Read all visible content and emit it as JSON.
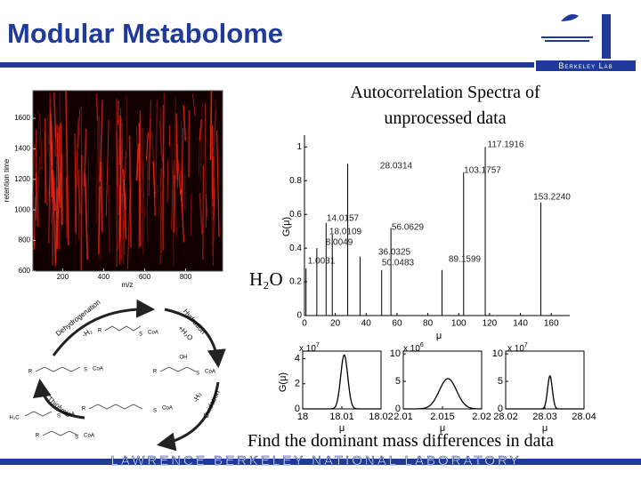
{
  "header": {
    "title": "Modular Metabolome",
    "logo_text": "Berkeley Lab"
  },
  "footer": {
    "text": "Lawrence Berkeley National Laboratory"
  },
  "caption": "Find the dominant mass differences in data",
  "annotation": "H₂O",
  "diagram": {
    "steps": [
      {
        "label": "Dehydrogenation",
        "note": "-H₂"
      },
      {
        "label": "Hydration",
        "note": "+H₂O"
      },
      {
        "label": "Oxidation",
        "note": "-H₂"
      },
      {
        "label": "Thiolysis"
      }
    ],
    "coa": "CoA",
    "r": "R",
    "s": "S",
    "oh": "OH",
    "h3c": "H₃C"
  },
  "chart_data": [
    {
      "type": "heatmap",
      "xlabel": "m/z",
      "ylabel": "retention time",
      "xlim": [
        55,
        980
      ],
      "ylim": [
        600,
        1780
      ],
      "xticks": [
        200,
        400,
        600,
        800
      ],
      "yticks": [
        600,
        800,
        1000,
        1200,
        1400,
        1600
      ],
      "color": "#ff2a1a"
    },
    {
      "type": "stem",
      "title": "Autocorrelation Spectra of unprocessed data",
      "xlabel": "μ",
      "ylabel": "G(μ)",
      "xlim": [
        0,
        172
      ],
      "ylim": [
        0,
        1.07
      ],
      "xticks": [
        0,
        20,
        40,
        60,
        80,
        100,
        120,
        140,
        160
      ],
      "yticks": [
        0,
        0.2,
        0.4,
        0.6,
        0.8,
        1
      ],
      "color": "#000000",
      "x": [
        117.1916,
        28.0314,
        103.1757,
        153.224,
        14.0157,
        56.0629,
        18.0109,
        8.0049,
        36.0325,
        1.0031,
        50.0483,
        89.1599
      ],
      "x_labels": [
        "117.1916",
        "28.0314",
        "103.1757",
        "153.2240",
        "14.0157",
        "56.0629",
        "18.0109",
        "8.0049",
        "36.0325",
        "1.0031",
        "50.0483",
        "89.1599"
      ],
      "values": [
        1.0,
        0.9,
        0.85,
        0.67,
        0.55,
        0.52,
        0.48,
        0.4,
        0.35,
        0.28,
        0.27,
        0.27
      ]
    },
    {
      "type": "peaks",
      "xlabel": "μ",
      "ylabel": "G(μ)",
      "color": "#000000",
      "panels": [
        {
          "xlim": [
            18,
            18.02
          ],
          "xticks": [
            18,
            18.01,
            18.02
          ],
          "ylim": [
            0,
            4.6
          ],
          "yticks": [
            0,
            2,
            4
          ],
          "scale": {
            "base": "x 10",
            "exponent": "7"
          },
          "peak": {
            "center": 18.0106,
            "height": 4.3,
            "width": 0.0009
          }
        },
        {
          "xlim": [
            2.01,
            2.02
          ],
          "xticks": [
            2.01,
            2.015,
            2.02
          ],
          "ylim": [
            0,
            10.5
          ],
          "yticks": [
            0,
            5,
            10
          ],
          "scale": {
            "base": "x 10",
            "exponent": "6"
          },
          "peak": {
            "center": 2.0157,
            "height": 5.5,
            "width": 0.0011
          }
        },
        {
          "xlim": [
            28.02,
            28.04
          ],
          "xticks": [
            28.02,
            28.03,
            28.04
          ],
          "ylim": [
            0,
            10.5
          ],
          "yticks": [
            0,
            5,
            10
          ],
          "scale": {
            "base": "x 10",
            "exponent": "7"
          },
          "peak": {
            "center": 28.0313,
            "height": 6,
            "width": 0.0006
          }
        }
      ]
    }
  ]
}
